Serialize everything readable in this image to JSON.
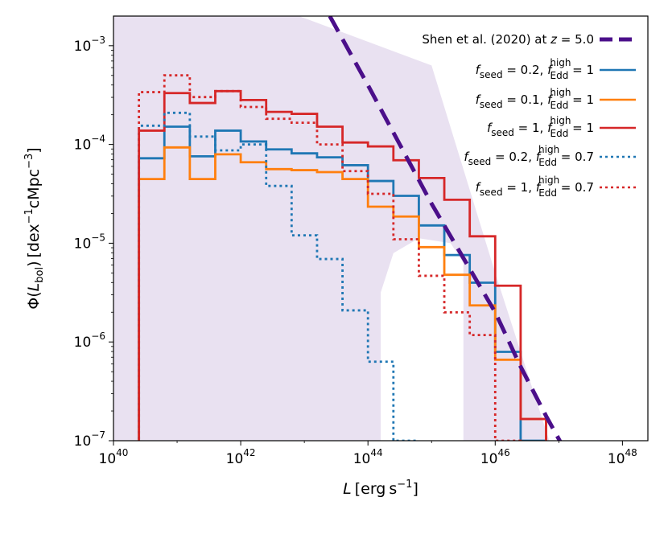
{
  "chart_data": {
    "type": "step",
    "xlabel": "L [erg s⁻¹]",
    "ylabel": "Φ(L_bol) [dex⁻¹ cMpc⁻³]",
    "xscale": "log",
    "yscale": "log",
    "xlim": [
      40,
      48.4
    ],
    "ylim": [
      -7,
      -2.7
    ],
    "xticks": [
      40,
      42,
      44,
      46,
      48
    ],
    "yticks": [
      -7,
      -6,
      -5,
      -4,
      -3
    ],
    "legend_position": "upper-right",
    "bin_edges_log": [
      40.4,
      40.8,
      41.2,
      41.6,
      42.0,
      42.4,
      42.8,
      43.2,
      43.6,
      44.0,
      44.4,
      44.8,
      45.2,
      45.6,
      46.0,
      46.4,
      46.8
    ],
    "shaded_region": {
      "color": "#e9e1f1",
      "upper_boundary_log": [
        [
          40.0,
          -2.0
        ],
        [
          45.0,
          -3.2
        ],
        [
          46.0,
          -5.3
        ],
        [
          46.6,
          -6.5
        ],
        [
          47.0,
          -7.3
        ]
      ],
      "notch_log": [
        [
          44.2,
          -7.0
        ],
        [
          44.2,
          -5.5
        ],
        [
          44.4,
          -5.1
        ],
        [
          44.8,
          -4.95
        ],
        [
          45.3,
          -5.0
        ],
        [
          45.5,
          -5.2
        ]
      ]
    },
    "model": {
      "name": "Shen et al. (2020) at z = 5.0",
      "color": "#4b0f8a",
      "style": "dashed",
      "points_log": [
        [
          43.4,
          -2.7
        ],
        [
          44.0,
          -3.4
        ],
        [
          44.5,
          -4.0
        ],
        [
          45.0,
          -4.6
        ],
        [
          45.5,
          -5.15
        ],
        [
          46.0,
          -5.7
        ],
        [
          46.4,
          -6.25
        ],
        [
          46.8,
          -6.75
        ],
        [
          47.1,
          -7.1
        ]
      ]
    },
    "series": [
      {
        "name": "f_seed = 0.2, f_Edd^high = 1",
        "color": "#1f77b4",
        "style": "solid",
        "values_log": [
          -4.14,
          -3.82,
          -4.12,
          -3.86,
          -3.97,
          -4.05,
          -4.09,
          -4.13,
          -4.21,
          -4.37,
          -4.52,
          -4.82,
          -5.12,
          -5.4,
          -6.1,
          -7.0
        ]
      },
      {
        "name": "f_seed = 0.1, f_Edd^high = 1",
        "color": "#ff7f0e",
        "style": "solid",
        "values_log": [
          -4.35,
          -4.03,
          -4.35,
          -4.1,
          -4.18,
          -4.25,
          -4.26,
          -4.28,
          -4.35,
          -4.63,
          -4.73,
          -5.04,
          -5.32,
          -5.63,
          -6.18,
          -6.78
        ]
      },
      {
        "name": "f_seed = 1, f_Edd^high = 1",
        "color": "#d62728",
        "style": "solid",
        "values_log": [
          -3.86,
          -3.48,
          -3.58,
          -3.46,
          -3.55,
          -3.67,
          -3.69,
          -3.82,
          -3.98,
          -4.02,
          -4.16,
          -4.34,
          -4.56,
          -4.93,
          -5.43,
          -6.78
        ]
      },
      {
        "name": "f_seed = 0.2, f_Edd^high = 0.7",
        "color": "#1f77b4",
        "style": "dotted",
        "values_log": [
          -3.81,
          -3.68,
          -3.92,
          -4.06,
          -4.0,
          -4.42,
          -4.92,
          -5.16,
          -5.68,
          -6.2,
          -7.0
        ]
      },
      {
        "name": "f_seed = 1, f_Edd^high = 0.7",
        "color": "#d62728",
        "style": "dotted",
        "values_log": [
          -3.47,
          -3.3,
          -3.52,
          -3.46,
          -3.62,
          -3.74,
          -3.78,
          -4.0,
          -4.27,
          -4.5,
          -4.96,
          -5.33,
          -5.7,
          -5.93,
          -7.0
        ]
      }
    ]
  }
}
